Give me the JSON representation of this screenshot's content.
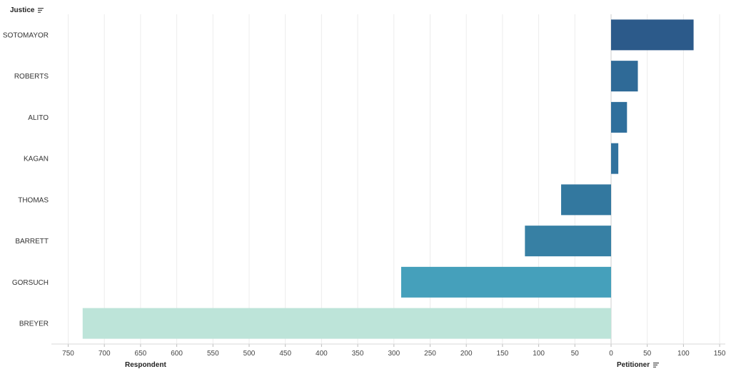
{
  "header": {
    "field_label": "Justice",
    "sort_icon": "sort-descending-icon"
  },
  "axis_titles": {
    "left": "Respondent",
    "right": "Petitioner",
    "right_sort_icon": "sort-descending-icon"
  },
  "chart_data": {
    "type": "bar",
    "orientation": "horizontal",
    "categories": [
      "SOTOMAYOR",
      "ROBERTS",
      "ALITO",
      "KAGAN",
      "THOMAS",
      "BARRETT",
      "GORSUCH",
      "BREYER"
    ],
    "values": [
      114,
      37,
      22,
      10,
      -69,
      -119,
      -290,
      -730
    ],
    "colors": [
      "#2c5a8a",
      "#2f6a97",
      "#2f6f9c",
      "#31729e",
      "#33789f",
      "#3780a4",
      "#45a0bb",
      "#bde4d9"
    ],
    "xlim": [
      -750,
      150
    ],
    "x_ticks": [
      -750,
      -700,
      -650,
      -600,
      -550,
      -500,
      -450,
      -400,
      -350,
      -300,
      -250,
      -200,
      -150,
      -100,
      -50,
      0,
      50,
      100,
      150
    ],
    "x_tick_labels": [
      "750",
      "700",
      "650",
      "600",
      "550",
      "500",
      "450",
      "400",
      "350",
      "300",
      "250",
      "200",
      "150",
      "100",
      "50",
      "0",
      "50",
      "100",
      "150"
    ],
    "grid": true
  }
}
